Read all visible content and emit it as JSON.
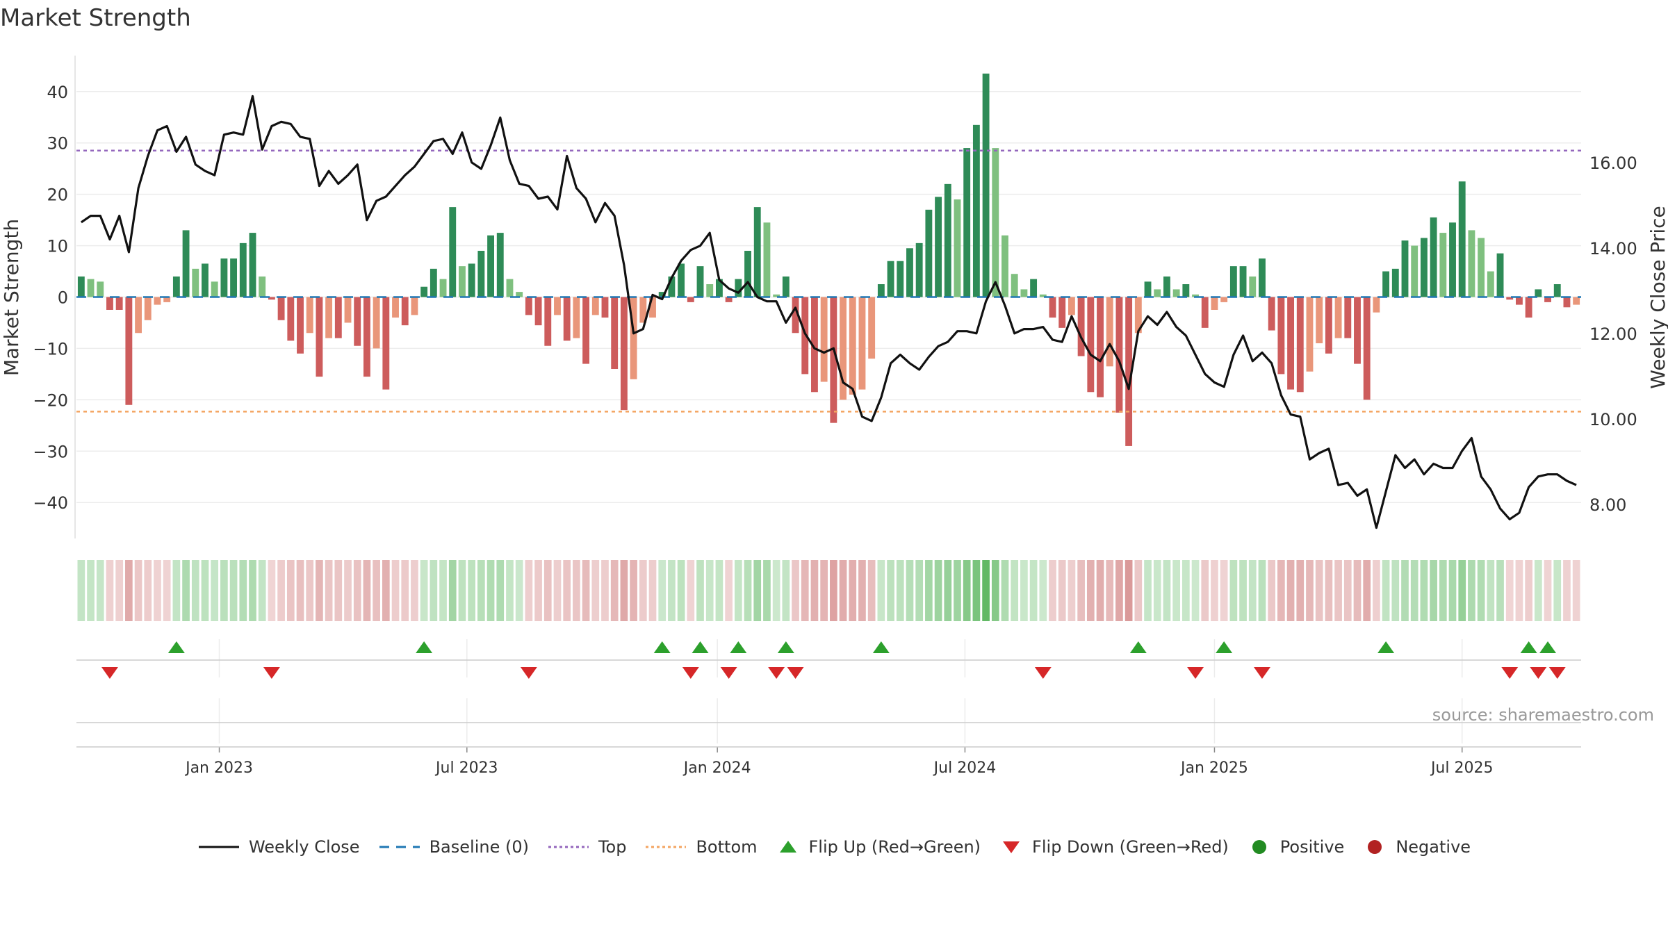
{
  "chart_data": {
    "type": "bar+line",
    "title": "Market Strength",
    "ylabel_left": "Market Strength",
    "ylabel_right": "Weekly Close Price",
    "y_left_ticks": [
      "−40",
      "−30",
      "−20",
      "−10",
      "0",
      "10",
      "20",
      "30",
      "40"
    ],
    "y_left_range": [
      -47,
      47
    ],
    "y_right_ticks": [
      "8.00",
      "10.00",
      "12.00",
      "14.00",
      "16.00"
    ],
    "y_right_range": [
      7.2,
      18.5
    ],
    "x_ticks": [
      "Jan 2023",
      "Jul 2023",
      "Jan 2024",
      "Jul 2024",
      "Jan 2025",
      "Jul 2025"
    ],
    "x_tick_week_index": [
      14.5,
      40.5,
      66.8,
      92.8,
      119.0,
      145.0
    ],
    "top_line": 28.5,
    "bottom_line": -22.3,
    "baseline": 0,
    "strength": [
      4,
      3.5,
      3,
      -2.5,
      -2.5,
      -21,
      -7,
      -4.5,
      -1.5,
      -1,
      4,
      13,
      5.5,
      6.5,
      3,
      7.5,
      7.5,
      10.5,
      12.5,
      4,
      -0.5,
      -4.5,
      -8.5,
      -11,
      -7,
      -15.5,
      -8,
      -8,
      -5,
      -9.5,
      -15.5,
      -10,
      -18,
      -4,
      -5.5,
      -3.5,
      2,
      5.5,
      3.5,
      17.5,
      6,
      6.5,
      9,
      12,
      12.5,
      3.5,
      1,
      -3.5,
      -5.5,
      -9.5,
      -3.5,
      -8.5,
      -8,
      -13,
      -3.5,
      -4,
      -14,
      -22,
      -16,
      -5,
      -4,
      1,
      4,
      6.5,
      -1,
      6,
      2.5,
      3.5,
      -1,
      3.5,
      9,
      17.5,
      14.5,
      0.5,
      4,
      -7,
      -15,
      -18.5,
      -16.5,
      -24.5,
      -20,
      -19,
      -18,
      -12,
      2.5,
      7,
      7,
      9.5,
      10.5,
      17,
      19.5,
      22,
      19,
      29,
      33.5,
      43.5,
      29,
      12,
      4.5,
      1.5,
      3.5,
      0.5,
      -4,
      -6,
      -3.5,
      -11.5,
      -18.5,
      -19.5,
      -13.5,
      -22.5,
      -29,
      -7,
      3,
      1.5,
      4,
      1.5,
      2.5,
      0.5,
      -6,
      -2.5,
      -1,
      6,
      6,
      4,
      7.5,
      -6.5,
      -15,
      -18,
      -18.5,
      -14.5,
      -9,
      -11,
      -8,
      -8,
      -13,
      -20,
      -3,
      5,
      5.5,
      11,
      10,
      11.5,
      15.5,
      12.5,
      14.5,
      22.5,
      13,
      11.5,
      5,
      8.5,
      -0.5,
      -1.5,
      -4,
      1.5,
      -1,
      2.5,
      -2,
      -1.5
    ],
    "close": [
      14.6,
      14.75,
      14.75,
      14.2,
      14.75,
      13.9,
      15.4,
      16.15,
      16.75,
      16.85,
      16.25,
      16.6,
      15.95,
      15.8,
      15.7,
      16.65,
      16.7,
      16.65,
      17.55,
      16.3,
      16.85,
      16.95,
      16.9,
      16.6,
      16.55,
      15.45,
      15.8,
      15.5,
      15.7,
      15.95,
      14.65,
      15.1,
      15.2,
      15.45,
      15.7,
      15.9,
      16.2,
      16.5,
      16.55,
      16.2,
      16.7,
      16.0,
      15.85,
      16.4,
      17.05,
      16.05,
      15.5,
      15.45,
      15.15,
      15.2,
      14.9,
      16.15,
      15.4,
      15.15,
      14.6,
      15.05,
      14.75,
      13.6,
      12.0,
      12.1,
      12.9,
      12.8,
      13.3,
      13.7,
      13.95,
      14.05,
      14.35,
      13.25,
      13.05,
      12.95,
      13.2,
      12.85,
      12.75,
      12.75,
      12.25,
      12.6,
      12.0,
      11.65,
      11.55,
      11.65,
      10.85,
      10.7,
      10.05,
      9.95,
      10.5,
      11.3,
      11.5,
      11.3,
      11.15,
      11.45,
      11.7,
      11.8,
      12.05,
      12.05,
      12.0,
      12.75,
      13.2,
      12.65,
      12.0,
      12.1,
      12.1,
      12.15,
      11.85,
      11.8,
      12.4,
      11.9,
      11.5,
      11.35,
      11.75,
      11.35,
      10.7,
      12.05,
      12.4,
      12.2,
      12.5,
      12.15,
      11.95,
      11.5,
      11.05,
      10.85,
      10.75,
      11.5,
      11.95,
      11.35,
      11.55,
      11.3,
      10.55,
      10.1,
      10.05,
      9.05,
      9.2,
      9.3,
      8.45,
      8.5,
      8.2,
      8.35,
      7.45,
      8.3,
      9.15,
      8.85,
      9.05,
      8.7,
      8.95,
      8.85,
      8.85,
      9.25,
      9.55,
      8.65,
      8.35,
      7.9,
      7.65,
      7.8,
      8.4,
      8.65,
      8.7,
      8.7,
      8.55,
      8.45
    ],
    "flip_up_week_index": [
      10,
      36,
      61,
      65,
      69,
      74,
      84,
      111,
      120,
      137,
      152,
      154
    ],
    "flip_down_week_index": [
      3,
      20,
      47,
      64,
      68,
      73,
      75,
      101,
      117,
      124,
      150,
      153,
      155
    ],
    "legend": [
      "Weekly Close",
      "Baseline (0)",
      "Top",
      "Bottom",
      "Flip Up (Red→Green)",
      "Flip Down (Green→Red)",
      "Positive",
      "Negative"
    ],
    "colors": {
      "strong_green": "#2e8b57",
      "light_green": "#7fc07f",
      "strong_red": "#cd5c5c",
      "light_red": "#e9967a",
      "line": "#111111",
      "baseline": "#1f77b4",
      "top": "#9467bd",
      "bottom": "#f4a460",
      "flip_up": "#2ca02c",
      "flip_down": "#d62728",
      "positive": "#228b22",
      "negative": "#b22222"
    }
  },
  "source": "source: sharemaestro.com"
}
